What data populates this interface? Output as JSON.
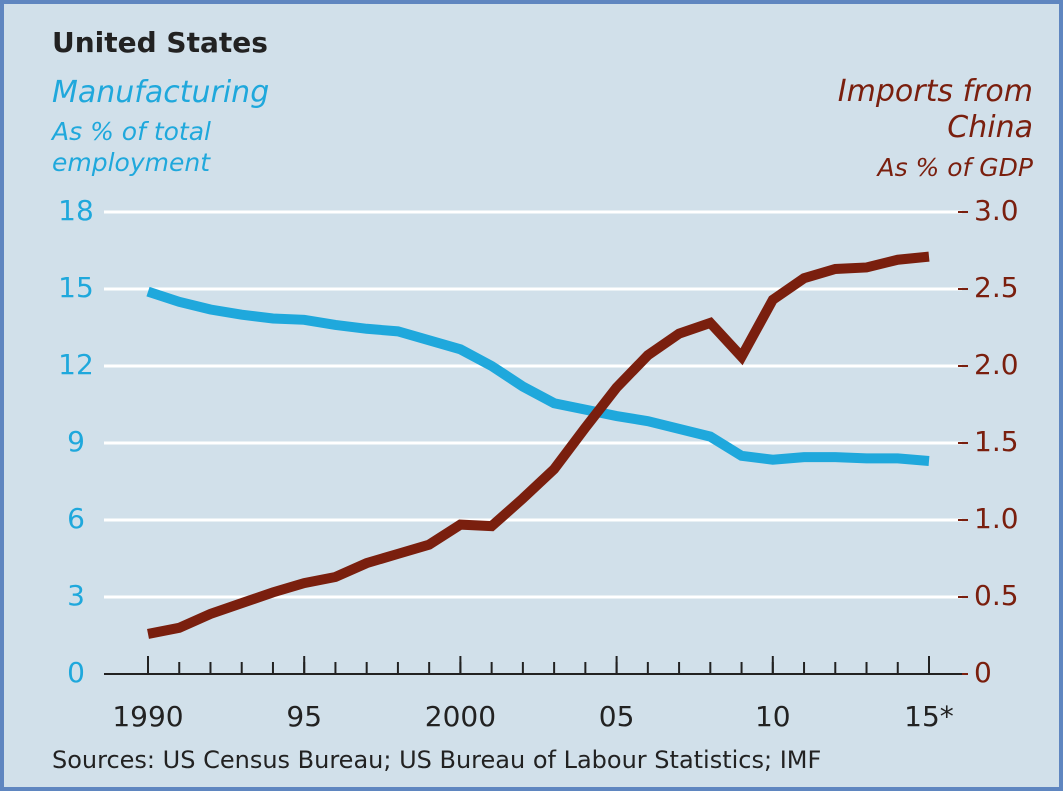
{
  "chart_data": {
    "type": "line",
    "title": "United States",
    "y_label": "As % of total employment",
    "y2_label": "As % of GDP",
    "source": "Sources: US Census Bureau; US Bureau of Labour Statistics; IMF",
    "x": [
      1990,
      1991,
      1992,
      1993,
      1994,
      1995,
      1996,
      1997,
      1998,
      1999,
      2000,
      2001,
      2002,
      2003,
      2004,
      2005,
      2006,
      2007,
      2008,
      2009,
      2010,
      2011,
      2012,
      2013,
      2014,
      2015
    ],
    "series": [
      {
        "name": "Manufacturing",
        "color": "#1fa8dc",
        "axis": "y",
        "values": [
          14.9,
          14.5,
          14.2,
          14.0,
          13.85,
          13.8,
          13.6,
          13.45,
          13.35,
          13.0,
          12.65,
          12.0,
          11.2,
          10.55,
          10.3,
          10.05,
          9.85,
          9.55,
          9.25,
          8.5,
          8.35,
          8.45,
          8.45,
          8.4,
          8.4,
          8.3
        ]
      },
      {
        "name": "Imports from China",
        "color": "#7a1f0e",
        "axis": "y2",
        "values": [
          0.26,
          0.3,
          0.39,
          0.46,
          0.53,
          0.59,
          0.63,
          0.72,
          0.78,
          0.84,
          0.97,
          0.96,
          1.14,
          1.33,
          1.6,
          1.86,
          2.07,
          2.21,
          2.28,
          2.06,
          2.43,
          2.57,
          2.63,
          2.64,
          2.69,
          2.71
        ]
      }
    ],
    "xlim": [
      1990,
      2015
    ],
    "xticks": [
      1990,
      {
        "value": 1995,
        "label": "95"
      },
      2000,
      {
        "value": 2005,
        "label": "05"
      },
      {
        "value": 2010,
        "label": "10"
      },
      {
        "value": 2015,
        "label": "15*"
      }
    ],
    "ylim": [
      0,
      18
    ],
    "yticks": [
      0,
      3,
      6,
      9,
      12,
      15,
      18
    ],
    "y2lim": [
      0,
      3
    ],
    "y2ticks": [
      0,
      0.5,
      {
        "value": 1,
        "label": "1.0"
      },
      1.5,
      {
        "value": 2,
        "label": "2.0"
      },
      2.5,
      {
        "value": 3,
        "label": "3.0"
      }
    ],
    "grid": true
  }
}
